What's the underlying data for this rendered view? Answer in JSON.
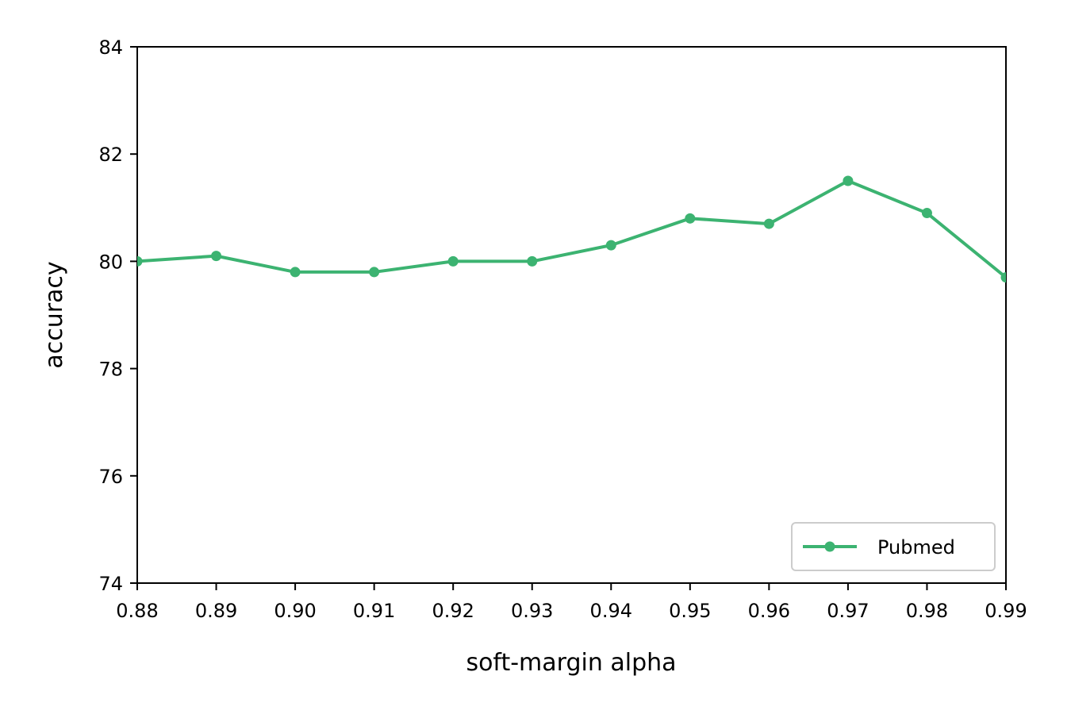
{
  "chart_data": {
    "type": "line",
    "title": "",
    "xlabel": "soft-margin alpha",
    "ylabel": "accuracy",
    "x": [
      0.88,
      0.89,
      0.9,
      0.91,
      0.92,
      0.93,
      0.94,
      0.95,
      0.96,
      0.97,
      0.98,
      0.99
    ],
    "xticks": [
      "0.88",
      "0.89",
      "0.90",
      "0.91",
      "0.92",
      "0.93",
      "0.94",
      "0.95",
      "0.96",
      "0.97",
      "0.98",
      "0.99"
    ],
    "yticks": [
      "74",
      "76",
      "78",
      "80",
      "82",
      "84"
    ],
    "xlim": [
      0.88,
      0.99
    ],
    "ylim": [
      74,
      84
    ],
    "grid": false,
    "legend_position": "lower-right",
    "series": [
      {
        "name": "Pubmed",
        "color": "#3cb371",
        "marker": "circle",
        "values": [
          80.0,
          80.1,
          79.8,
          79.8,
          80.0,
          80.0,
          80.3,
          80.8,
          80.7,
          81.5,
          80.9,
          79.7
        ]
      }
    ]
  }
}
